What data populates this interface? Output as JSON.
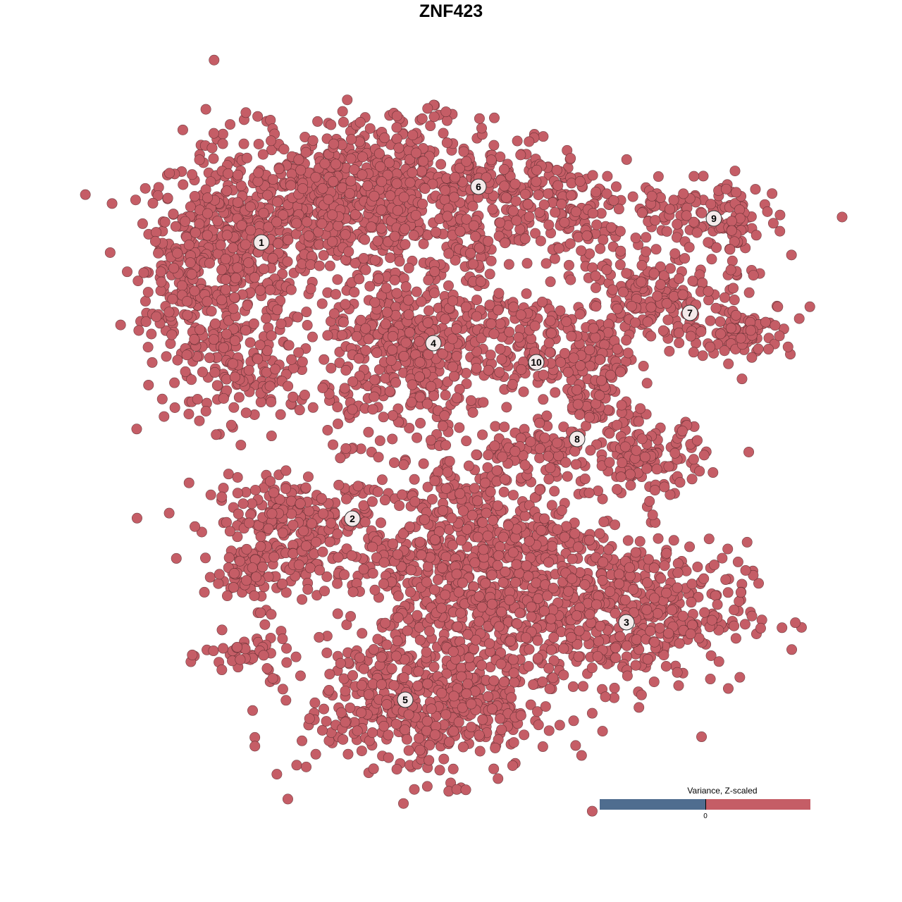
{
  "chart_data": {
    "type": "scatter",
    "title": "ZNF423",
    "xlabel": "",
    "ylabel": "",
    "grid": false,
    "axes_visible": false,
    "xlim": [
      -64,
      64
    ],
    "ylim": [
      -64,
      64
    ],
    "point_color": "#c55d66",
    "point_stroke": "#5a2a2e",
    "label_fill": "#f4eaea",
    "legend": {
      "title": "Variance, Z-scaled",
      "tick_label": "0",
      "low_color": "#4f6d8f",
      "high_color": "#c55d66",
      "placement": "bottom-right"
    },
    "clusters": [
      {
        "label": "1",
        "center": [
          -26.9,
          29.6
        ],
        "blobs": [
          [
            -31,
            26,
            6,
            9,
            500
          ],
          [
            -39,
            25,
            3,
            5,
            80
          ],
          [
            -19,
            34,
            8,
            5,
            300
          ],
          [
            -28,
            10,
            5,
            3,
            80
          ]
        ]
      },
      {
        "label": "2",
        "center": [
          -14.0,
          -9.6
        ],
        "blobs": [
          [
            -22,
            -10,
            6,
            3,
            200
          ],
          [
            -27,
            -17,
            4,
            2.5,
            100
          ],
          [
            -29,
            -29,
            3,
            1.5,
            40
          ]
        ]
      },
      {
        "label": "3",
        "center": [
          24.9,
          -24.3
        ],
        "blobs": [
          [
            26,
            -23,
            8,
            5,
            400
          ],
          [
            4,
            -16,
            10,
            8,
            900
          ]
        ]
      },
      {
        "label": "4",
        "center": [
          -2.5,
          15.3
        ],
        "blobs": [
          [
            -6,
            14.5,
            6,
            6,
            450
          ]
        ]
      },
      {
        "label": "5",
        "center": [
          -6.5,
          -35.3
        ],
        "blobs": [
          [
            -3,
            -36,
            9,
            5,
            500
          ]
        ]
      },
      {
        "label": "6",
        "center": [
          3.9,
          37.5
        ],
        "blobs": [
          [
            -8,
            38,
            8,
            5,
            400
          ],
          [
            8,
            36,
            7,
            4,
            200
          ],
          [
            18,
            32,
            3,
            3,
            60
          ],
          [
            4,
            27,
            2,
            4,
            40
          ]
        ]
      },
      {
        "label": "7",
        "center": [
          33.9,
          19.6
        ],
        "blobs": [
          [
            29,
            22,
            5,
            3,
            150
          ],
          [
            41,
            17,
            4,
            2,
            100
          ]
        ]
      },
      {
        "label": "8",
        "center": [
          17.9,
          1.7
        ],
        "blobs": [
          [
            21,
            10,
            2.5,
            5,
            150
          ],
          [
            28,
            -1,
            4,
            2.5,
            120
          ],
          [
            12,
            0,
            5,
            2,
            80
          ]
        ]
      },
      {
        "label": "9",
        "center": [
          37.3,
          33.0
        ],
        "blobs": [
          [
            34,
            33,
            6,
            2.5,
            120
          ],
          [
            41,
            31,
            1.5,
            4,
            40
          ]
        ]
      },
      {
        "label": "10",
        "center": [
          12.1,
          12.6
        ],
        "blobs": [
          [
            12.5,
            15,
            4,
            3.5,
            100
          ],
          [
            9,
            19,
            4,
            2,
            40
          ]
        ]
      }
    ]
  }
}
